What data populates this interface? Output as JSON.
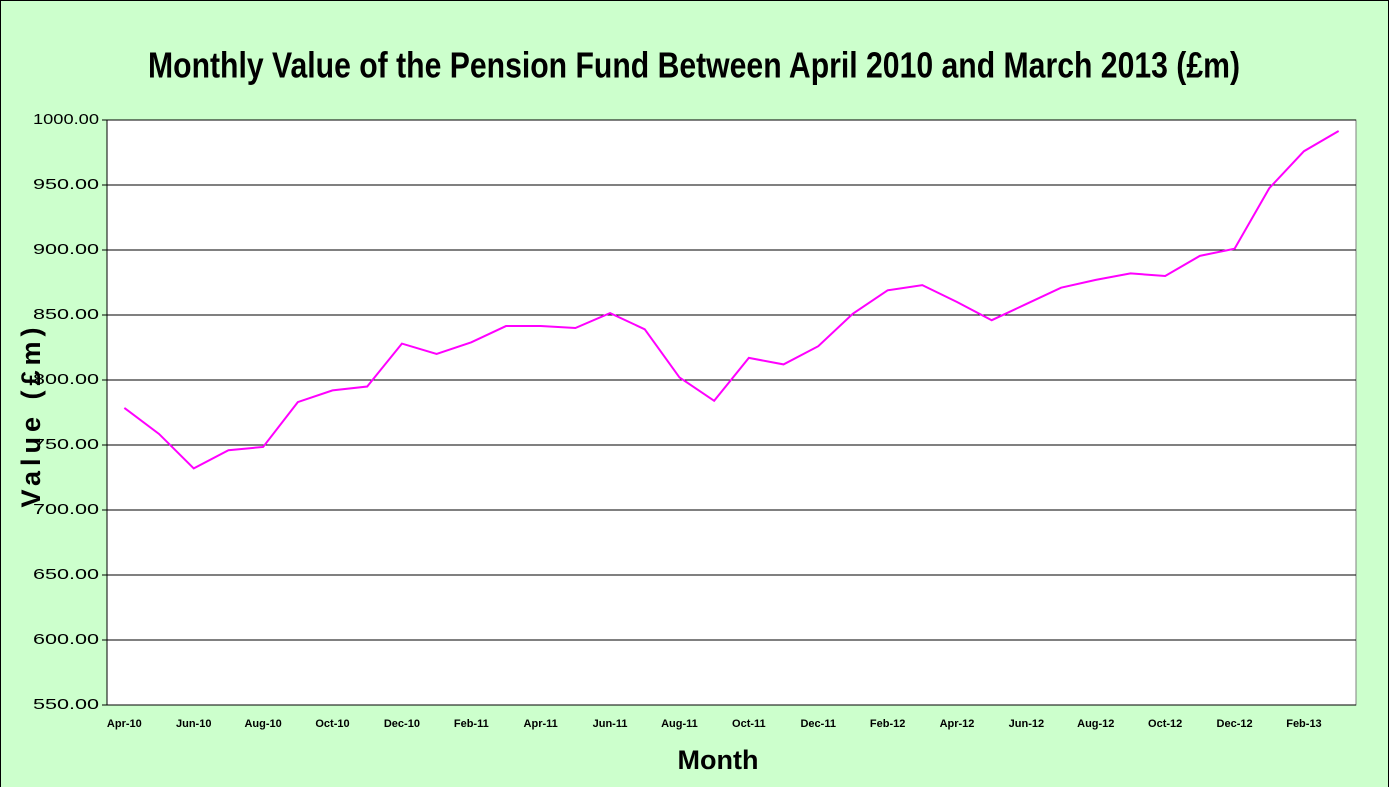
{
  "chart_data": {
    "type": "line",
    "title": "Monthly Value of the Pension Fund Between April 2010 and March 2013 (£m)",
    "x_label": "Month",
    "y_label": "Value (£m)",
    "categories": [
      "Apr-10",
      null,
      "Jun-10",
      null,
      "Aug-10",
      null,
      "Oct-10",
      null,
      "Dec-10",
      null,
      "Feb-11",
      null,
      "Apr-11",
      null,
      "Jun-11",
      null,
      "Aug-11",
      null,
      "Oct-11",
      null,
      "Dec-11",
      null,
      "Feb-12",
      null,
      "Apr-12",
      null,
      "Jun-12",
      null,
      "Aug-12",
      null,
      "Oct-12",
      null,
      "Dec-12",
      null,
      "Feb-13",
      null
    ],
    "series": [
      {
        "color": "#ff00ff",
        "values": [
          778.5,
          758.5,
          732,
          746,
          748.5,
          783,
          792,
          795,
          828,
          820,
          829,
          841.5,
          841.5,
          840,
          851.5,
          839,
          802,
          784,
          817,
          812,
          826,
          851,
          869,
          873,
          860,
          846,
          858.5,
          871,
          877,
          882,
          880,
          895.5,
          901,
          947.5,
          976,
          991.5
        ]
      }
    ],
    "ylim": [
      550,
      1000
    ],
    "yticks": [
      {
        "value": 550,
        "label": "550.00"
      },
      {
        "value": 600,
        "label": "600.00"
      },
      {
        "value": 650,
        "label": "650.00"
      },
      {
        "value": 700,
        "label": "700.00"
      },
      {
        "value": 750,
        "label": "750.00"
      },
      {
        "value": 800,
        "label": "800.00"
      },
      {
        "value": 850,
        "label": "850.00"
      },
      {
        "value": 900,
        "label": "900.00"
      },
      {
        "value": 950,
        "label": "950.00"
      },
      {
        "value": 1000,
        "label": "1000.00"
      }
    ],
    "grid": true
  }
}
